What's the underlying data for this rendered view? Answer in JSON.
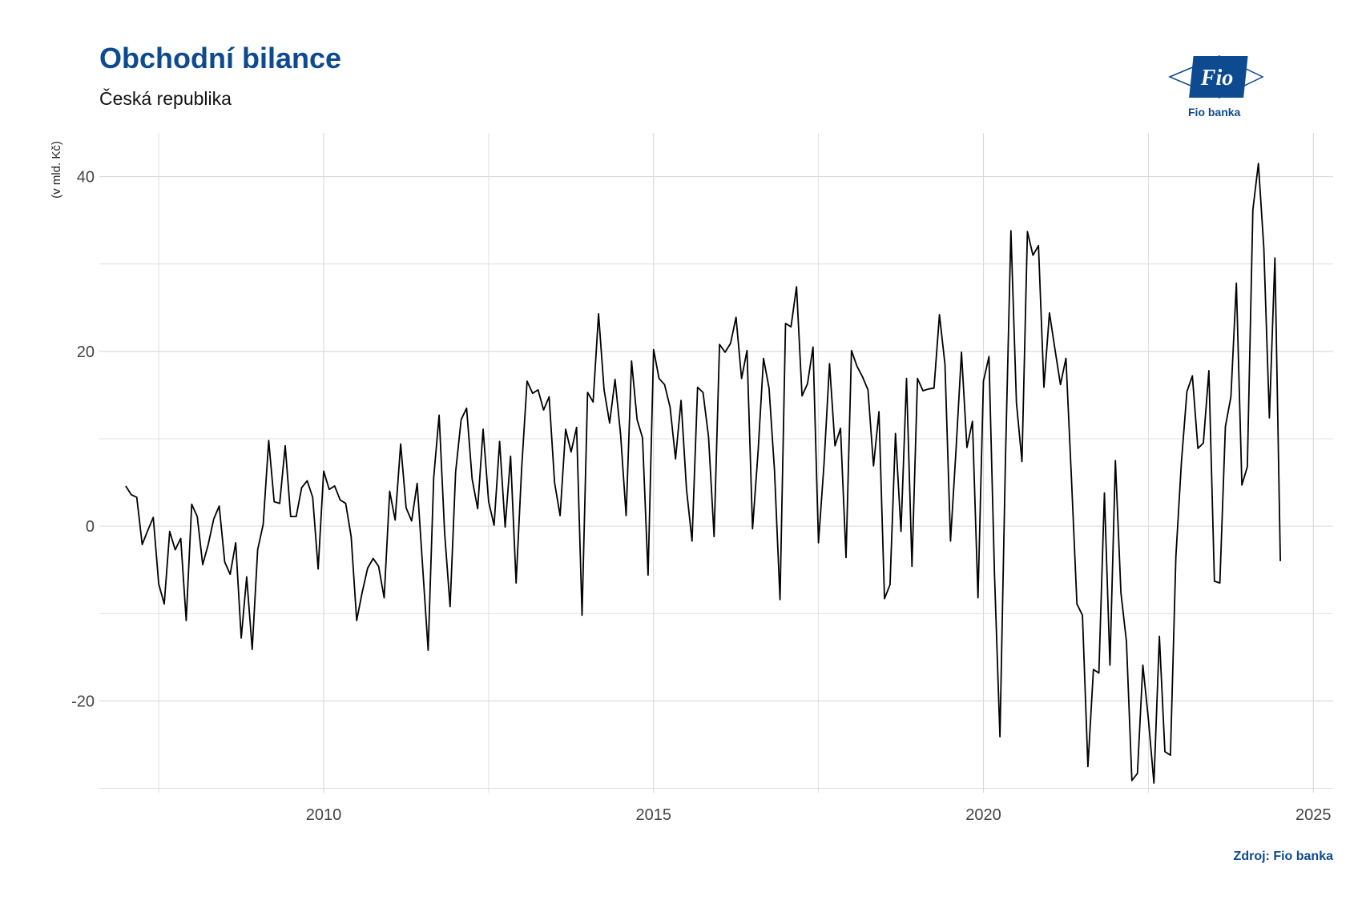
{
  "header": {
    "title": "Obchodní bilance",
    "subtitle": "Česká republika",
    "source": "Zdroj: Fio banka",
    "logo_text": "Fio banka",
    "logo_mark": "Fio"
  },
  "colors": {
    "brand": "#0d4a8f",
    "line": "#000000",
    "grid": "#d9d9d9"
  },
  "chart_data": {
    "type": "line",
    "title": "Obchodní bilance",
    "subtitle": "Česká republika",
    "ylabel": "(v mld. Kč)",
    "xlabel": "",
    "xlim": [
      2006.6,
      2025.3
    ],
    "ylim": [
      -30.5,
      45
    ],
    "x_ticks": [
      2010,
      2015,
      2020,
      2025
    ],
    "y_ticks": [
      -20,
      0,
      20,
      40
    ],
    "grid": true,
    "legend": "none",
    "series": [
      {
        "start_year": 2007,
        "start_month": 1,
        "frequency": "monthly",
        "values": [
          4.6,
          3.6,
          3.3,
          -2.1,
          -0.5,
          1.0,
          -6.6,
          -8.9,
          -0.6,
          -2.7,
          -1.4,
          -10.8,
          2.5,
          1.1,
          -4.4,
          -2.1,
          0.8,
          2.3,
          -4.1,
          -5.5,
          -1.9,
          -12.8,
          -5.8,
          -14.1,
          -2.7,
          0.2,
          9.8,
          2.8,
          2.6,
          9.2,
          1.1,
          1.1,
          4.4,
          5.2,
          3.3,
          -4.9,
          6.3,
          4.2,
          4.6,
          3.0,
          2.6,
          -1.2,
          -10.8,
          -7.6,
          -4.8,
          -3.7,
          -4.6,
          -8.2,
          4.0,
          0.7,
          9.4,
          2.1,
          0.6,
          4.9,
          -4.6,
          -14.2,
          5.5,
          12.7,
          -0.8,
          -9.2,
          6.2,
          12.2,
          13.5,
          5.4,
          2.0,
          11.1,
          2.8,
          0.1,
          9.7,
          -0.1,
          8.0,
          -6.5,
          6.6,
          16.6,
          15.2,
          15.6,
          13.3,
          14.8,
          5.0,
          1.2,
          11.1,
          8.5,
          11.3,
          -10.2,
          15.3,
          14.2,
          24.3,
          15.6,
          11.8,
          16.8,
          10.5,
          1.2,
          18.9,
          12.2,
          10.1,
          -5.6,
          20.2,
          16.9,
          16.2,
          13.6,
          7.7,
          14.4,
          4.2,
          -1.7,
          15.9,
          15.3,
          10.2,
          -1.2,
          20.8,
          19.9,
          20.9,
          23.9,
          16.9,
          20.1,
          -0.3,
          8.5,
          19.2,
          15.8,
          6.4,
          -8.4,
          23.2,
          22.8,
          27.4,
          14.9,
          16.3,
          20.5,
          -1.9,
          7.1,
          18.6,
          9.2,
          11.2,
          -3.6,
          20.1,
          18.3,
          17.1,
          15.6,
          6.9,
          13.1,
          -8.3,
          -6.7,
          10.6,
          -0.6,
          16.9,
          -4.6,
          16.9,
          15.5,
          15.7,
          15.8,
          24.2,
          18.5,
          -1.7,
          8.6,
          19.9,
          9.0,
          12.0,
          -8.2,
          16.6,
          19.4,
          -5.5,
          -24.1,
          7.7,
          33.8,
          14.1,
          7.4,
          33.7,
          31.0,
          32.1,
          15.9,
          24.4,
          20.3,
          16.2,
          19.2,
          5.6,
          -8.9,
          -10.2,
          -27.5,
          -16.4,
          -16.8,
          3.8,
          -15.9,
          7.5,
          -7.6,
          -13.2,
          -29.1,
          -28.3,
          -15.9,
          -22.1,
          -29.4,
          -12.6,
          -25.8,
          -26.2,
          -3.5,
          7.3,
          15.4,
          17.2,
          8.9,
          9.5,
          17.8,
          -6.3,
          -6.5,
          11.4,
          14.8,
          27.8,
          4.7,
          6.8,
          36.2,
          41.5,
          31.8,
          12.4,
          30.7,
          -4.0
        ]
      }
    ]
  }
}
